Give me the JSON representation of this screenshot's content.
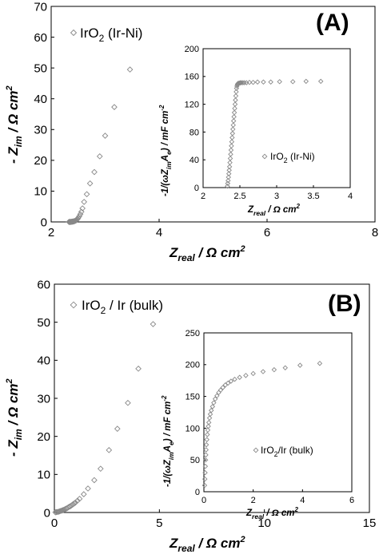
{
  "chart_data": [
    {
      "type": "scatter",
      "panel": "(A)",
      "xlim": [
        2,
        8
      ],
      "ylim": [
        0,
        70
      ],
      "x_ticks": [
        "2",
        "4",
        "6",
        "8"
      ],
      "y_ticks": [
        "0",
        "10",
        "20",
        "30",
        "40",
        "50",
        "60",
        "70"
      ],
      "xlabel": {
        "main": "Z",
        "sub": "real",
        "unit": " / Ω cm",
        "sup": "2"
      },
      "ylabel": {
        "main": "- Z",
        "sub": "im",
        "unit": " / Ω cm",
        "sup": "2"
      },
      "series": [
        {
          "name": "IrO2 (Ir-Ni)",
          "legend": {
            "pre": "IrO",
            "sub": "2",
            "post": " (Ir-Ni)"
          },
          "marker": "diamond",
          "x": [
            2.33,
            2.34,
            2.35,
            2.36,
            2.37,
            2.38,
            2.39,
            2.4,
            2.41,
            2.42,
            2.43,
            2.44,
            2.45,
            2.46,
            2.47,
            2.48,
            2.49,
            2.5,
            2.52,
            2.54,
            2.56,
            2.58,
            2.61,
            2.66,
            2.72,
            2.8,
            2.9,
            3.0,
            3.17,
            3.46
          ],
          "y": [
            0.0,
            0.0,
            0.0,
            0.0,
            0.05,
            0.05,
            0.1,
            0.1,
            0.15,
            0.2,
            0.25,
            0.3,
            0.4,
            0.5,
            0.6,
            0.8,
            1.0,
            1.3,
            1.8,
            2.5,
            3.3,
            4.4,
            6.5,
            9.0,
            12.5,
            16.2,
            21.3,
            28.0,
            37.3,
            49.5
          ]
        }
      ],
      "inset": {
        "type": "scatter",
        "xlim": [
          2,
          4
        ],
        "ylim": [
          0,
          200
        ],
        "x_ticks": [
          "2",
          "2.5",
          "3",
          "3.5",
          "4"
        ],
        "y_ticks": [
          "0",
          "40",
          "80",
          "120",
          "160",
          "200"
        ],
        "xlabel": {
          "main": "Z",
          "sub": "real",
          "unit": " / Ω cm",
          "sup": "2"
        },
        "ylabel": {
          "pre": "-1/(ωZ",
          "sub1": "im",
          "mid": "A",
          "sub2": "e",
          "unit": ") / mF cm",
          "sup": "-2"
        },
        "legend": {
          "pre": "IrO",
          "sub": "2",
          "post": " (Ir-Ni)"
        },
        "x": [
          2.33,
          2.335,
          2.34,
          2.345,
          2.35,
          2.355,
          2.36,
          2.365,
          2.37,
          2.375,
          2.38,
          2.385,
          2.39,
          2.395,
          2.4,
          2.405,
          2.41,
          2.415,
          2.42,
          2.425,
          2.43,
          2.435,
          2.44,
          2.445,
          2.45,
          2.455,
          2.46,
          2.465,
          2.47,
          2.475,
          2.48,
          2.49,
          2.5,
          2.51,
          2.52,
          2.54,
          2.56,
          2.59,
          2.63,
          2.68,
          2.74,
          2.82,
          2.92,
          3.04,
          3.22,
          3.4,
          3.6
        ],
        "y": [
          2,
          6,
          10,
          15,
          20,
          25,
          30,
          36,
          42,
          48,
          54,
          60,
          66,
          72,
          78,
          84,
          90,
          96,
          102,
          108,
          114,
          120,
          126,
          132,
          138,
          143,
          146,
          148,
          149,
          150,
          150,
          150.5,
          150.5,
          151,
          151,
          151,
          151,
          151,
          151.5,
          151.5,
          152,
          152,
          152,
          152.5,
          152.5,
          153,
          153
        ]
      }
    },
    {
      "type": "scatter",
      "panel": "(B)",
      "xlim": [
        0,
        15
      ],
      "ylim": [
        0,
        60
      ],
      "x_ticks": [
        "0",
        "5",
        "10",
        "15"
      ],
      "y_ticks": [
        "0",
        "10",
        "20",
        "30",
        "40",
        "50",
        "60"
      ],
      "xlabel": {
        "main": "Z",
        "sub": "real",
        "unit": " / Ω cm",
        "sup": "2"
      },
      "ylabel": {
        "main": "- Z",
        "sub": "im",
        "unit": " / Ω cm",
        "sup": "2"
      },
      "series": [
        {
          "name": "IrO2 / Ir (bulk)",
          "legend": {
            "pre": "IrO",
            "sub": "2",
            "post": " / Ir (bulk)"
          },
          "marker": "diamond",
          "x": [
            0.05,
            0.1,
            0.15,
            0.2,
            0.25,
            0.3,
            0.35,
            0.4,
            0.45,
            0.5,
            0.55,
            0.6,
            0.65,
            0.7,
            0.75,
            0.8,
            0.85,
            0.9,
            0.95,
            1.0,
            1.1,
            1.2,
            1.4,
            1.6,
            1.9,
            2.2,
            2.6,
            3.0,
            3.5,
            4.0,
            4.7
          ],
          "y": [
            0.05,
            0.1,
            0.15,
            0.2,
            0.3,
            0.4,
            0.5,
            0.6,
            0.7,
            0.85,
            1.0,
            1.1,
            1.3,
            1.5,
            1.6,
            1.8,
            2.0,
            2.2,
            2.4,
            2.6,
            3.1,
            3.6,
            4.8,
            6.3,
            8.5,
            11.5,
            16.4,
            22.0,
            28.8,
            37.8,
            49.5
          ]
        }
      ],
      "inset": {
        "type": "scatter",
        "xlim": [
          0,
          6
        ],
        "ylim": [
          0,
          250
        ],
        "x_ticks": [
          "0",
          "2",
          "4",
          "6"
        ],
        "y_ticks": [
          "0",
          "50",
          "100",
          "150",
          "200",
          "250"
        ],
        "xlabel": {
          "main": "Z",
          "sub": "real",
          "unit": " / Ω cm",
          "sup": "2"
        },
        "ylabel": {
          "pre": "-1/(ωZ",
          "sub1": "im",
          "mid": "A",
          "sub2": "e",
          "unit": ") / mF cm",
          "sup": "-2"
        },
        "legend": {
          "pre": "IrO",
          "sub": "2",
          "post": "/Ir    (bulk)"
        },
        "x": [
          0.03,
          0.04,
          0.05,
          0.06,
          0.07,
          0.08,
          0.09,
          0.1,
          0.12,
          0.14,
          0.16,
          0.18,
          0.2,
          0.23,
          0.26,
          0.3,
          0.35,
          0.4,
          0.46,
          0.53,
          0.6,
          0.68,
          0.77,
          0.87,
          0.98,
          1.1,
          1.25,
          1.45,
          1.7,
          2.0,
          2.4,
          2.85,
          3.3,
          3.9,
          4.7
        ],
        "y": [
          10,
          20,
          30,
          40,
          50,
          58,
          66,
          74,
          82,
          90,
          97,
          103,
          109,
          116,
          122,
          128,
          134,
          140,
          146,
          151,
          156,
          160,
          164,
          168,
          171,
          174,
          177,
          180,
          183,
          186,
          189,
          192,
          195,
          199,
          202
        ]
      }
    }
  ]
}
